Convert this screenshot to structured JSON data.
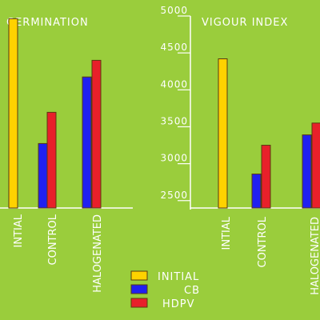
{
  "colors": {
    "background": "#9ACD3C",
    "axis": "#ffffff",
    "text": "#ffffff",
    "initial": "#FFD200",
    "cb": "#2020F0",
    "hdpv": "#E8202A",
    "bar_outline": "#5a3a10"
  },
  "legend": {
    "entries": [
      {
        "label": "INITIAL",
        "color": "#FFD200"
      },
      {
        "label": "CB",
        "color": "#2020F0"
      },
      {
        "label": "HDPV",
        "color": "#E8202A"
      }
    ]
  },
  "chart_data": [
    {
      "type": "bar",
      "title": "GERMINATION",
      "categories": [
        "INTIAL",
        "CONTROL",
        "HALOGENATED"
      ],
      "series": [
        {
          "name": "INITIAL",
          "values": [
            91,
            null,
            null
          ]
        },
        {
          "name": "CB",
          "values": [
            null,
            31,
            63
          ]
        },
        {
          "name": "HDPV",
          "values": [
            null,
            46,
            71
          ]
        }
      ],
      "ylim": [
        0,
        100
      ],
      "yticks": [],
      "grid": false
    },
    {
      "type": "bar",
      "title": "VIGOUR INDEX",
      "categories": [
        "INTIAL",
        "CONTROL",
        "HALOGENATED"
      ],
      "series": [
        {
          "name": "INITIAL",
          "values": [
            4420,
            null,
            null
          ]
        },
        {
          "name": "CB",
          "values": [
            null,
            2860,
            3390
          ]
        },
        {
          "name": "HDPV",
          "values": [
            null,
            3250,
            3550
          ]
        }
      ],
      "ylim": [
        2400,
        5000
      ],
      "yticks": [
        2500,
        3000,
        3500,
        4000,
        4500,
        5000
      ],
      "grid": false
    }
  ]
}
